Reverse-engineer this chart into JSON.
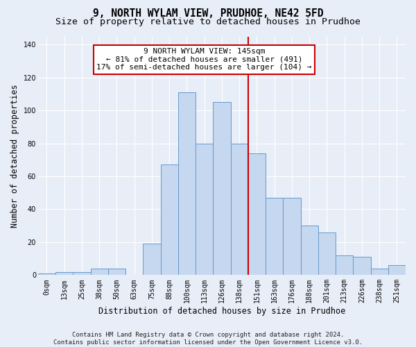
{
  "title": "9, NORTH WYLAM VIEW, PRUDHOE, NE42 5FD",
  "subtitle": "Size of property relative to detached houses in Prudhoe",
  "xlabel": "Distribution of detached houses by size in Prudhoe",
  "ylabel": "Number of detached properties",
  "footer_line1": "Contains HM Land Registry data © Crown copyright and database right 2024.",
  "footer_line2": "Contains public sector information licensed under the Open Government Licence v3.0.",
  "bin_labels": [
    "0sqm",
    "13sqm",
    "25sqm",
    "38sqm",
    "50sqm",
    "63sqm",
    "75sqm",
    "88sqm",
    "100sqm",
    "113sqm",
    "126sqm",
    "138sqm",
    "151sqm",
    "163sqm",
    "176sqm",
    "188sqm",
    "201sqm",
    "213sqm",
    "226sqm",
    "238sqm",
    "251sqm"
  ],
  "bar_values": [
    1,
    2,
    2,
    4,
    4,
    0,
    19,
    67,
    111,
    80,
    105,
    80,
    74,
    47,
    47,
    30,
    26,
    12,
    11,
    4,
    6
  ],
  "bar_color": "#c5d8f0",
  "bar_edgecolor": "#6699cc",
  "bar_linewidth": 0.7,
  "red_line_x": 11.5,
  "annotation_text": "9 NORTH WYLAM VIEW: 145sqm\n← 81% of detached houses are smaller (491)\n17% of semi-detached houses are larger (104) →",
  "annotation_box_color": "#ffffff",
  "annotation_border_color": "#cc0000",
  "ylim": [
    0,
    145
  ],
  "yticks": [
    0,
    20,
    40,
    60,
    80,
    100,
    120,
    140
  ],
  "background_color": "#e8eef8",
  "grid_color": "#ffffff",
  "title_fontsize": 10.5,
  "subtitle_fontsize": 9.5,
  "axis_label_fontsize": 8.5,
  "tick_fontsize": 7,
  "footer_fontsize": 6.5,
  "annotation_fontsize": 8
}
